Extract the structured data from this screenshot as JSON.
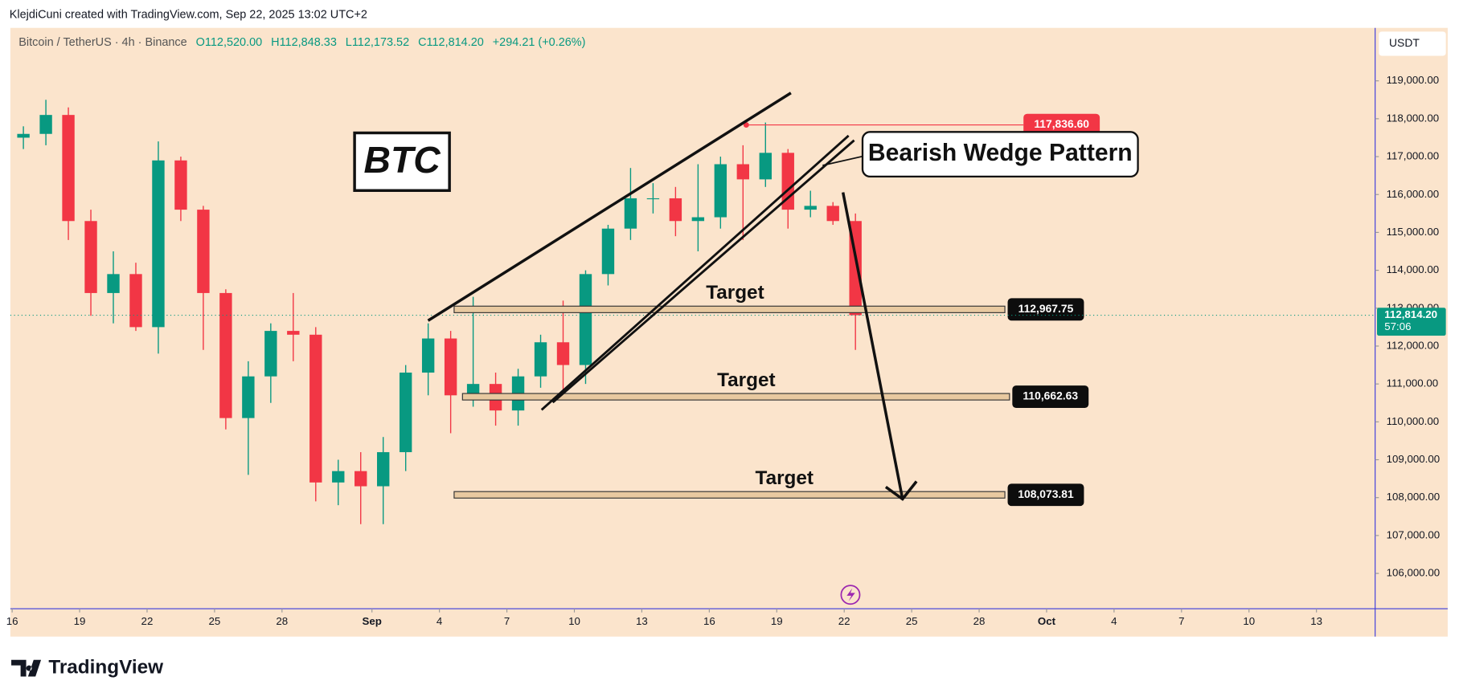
{
  "header": {
    "credit": "KlejdiCuni created with TradingView.com, Sep 22, 2025 13:02 UTC+2",
    "symbol": "Bitcoin / TetherUS · 4h · Binance",
    "open": "O112,520.00",
    "high": "H112,848.33",
    "low": "L112,173.52",
    "close": "C112,814.20",
    "change": "+294.21 (+0.26%)"
  },
  "chart_data": {
    "type": "candlestick",
    "currency": "USDT",
    "x": [
      0.5,
      1.5,
      2.5,
      3.5,
      4.5,
      5.5,
      6.5,
      7.5,
      8.5,
      9.5,
      10.5,
      11.5,
      12.5,
      13.5,
      14.5,
      15.5,
      16.5,
      17.5,
      18.5,
      19.5,
      20.5,
      21.5,
      22.5,
      23.5,
      24.5,
      25.5,
      26.5,
      27.5,
      28.5,
      29.5,
      30.5,
      31.5,
      32.5,
      33.5,
      34.5,
      35.5,
      36.5,
      37.5
    ],
    "open": [
      117500,
      117600,
      118100,
      115300,
      113400,
      113900,
      112500,
      116900,
      115600,
      113400,
      110100,
      111200,
      112400,
      112300,
      108400,
      108700,
      108300,
      109200,
      111300,
      112200,
      110700,
      111000,
      110300,
      111200,
      112100,
      111500,
      113900,
      115100,
      115900,
      115900,
      115300,
      115400,
      116800,
      116400,
      117100,
      115600,
      115700,
      115300
    ],
    "high": [
      117800,
      118500,
      118300,
      115600,
      114500,
      114200,
      117400,
      117000,
      115700,
      113500,
      111600,
      112600,
      113400,
      112500,
      109000,
      109200,
      109600,
      111500,
      112600,
      112400,
      113300,
      111300,
      111400,
      112300,
      113200,
      114000,
      115200,
      116700,
      116300,
      116200,
      116800,
      117000,
      117300,
      117900,
      117200,
      116100,
      115800,
      115500
    ],
    "low": [
      117200,
      117300,
      114800,
      112800,
      112600,
      112400,
      111800,
      115300,
      111900,
      109800,
      108600,
      110500,
      111600,
      107900,
      107800,
      107300,
      107300,
      108700,
      110700,
      109700,
      110400,
      109900,
      109900,
      110900,
      110700,
      111000,
      113600,
      114800,
      115500,
      114900,
      114500,
      115100,
      114800,
      116200,
      115100,
      115400,
      115200,
      111900
    ],
    "close": [
      117600,
      118100,
      115300,
      113400,
      113900,
      112500,
      116900,
      115600,
      113400,
      110100,
      111200,
      112400,
      112300,
      108400,
      108700,
      108300,
      109200,
      111300,
      112200,
      110700,
      111000,
      110300,
      111200,
      112100,
      111500,
      113900,
      115100,
      115900,
      115900,
      115300,
      115400,
      116800,
      116400,
      117100,
      115600,
      115700,
      115300,
      112814.2
    ],
    "up_color": "#089981",
    "down_color": "#f23645",
    "xlim": [
      -0.08,
      60.61
    ],
    "ylim": [
      105068,
      120398
    ],
    "xticks": [
      {
        "value": 0,
        "label": "16"
      },
      {
        "value": 3,
        "label": "19"
      },
      {
        "value": 6,
        "label": "22"
      },
      {
        "value": 9,
        "label": "25"
      },
      {
        "value": 12,
        "label": "28"
      },
      {
        "value": 16,
        "label": "Sep"
      },
      {
        "value": 19,
        "label": "4"
      },
      {
        "value": 22,
        "label": "7"
      },
      {
        "value": 25,
        "label": "10"
      },
      {
        "value": 28,
        "label": "13"
      },
      {
        "value": 31,
        "label": "16"
      },
      {
        "value": 34,
        "label": "19"
      },
      {
        "value": 37,
        "label": "22"
      },
      {
        "value": 40,
        "label": "25"
      },
      {
        "value": 43,
        "label": "28"
      },
      {
        "value": 46,
        "label": "Oct"
      },
      {
        "value": 49,
        "label": "4"
      },
      {
        "value": 52,
        "label": "7"
      },
      {
        "value": 55,
        "label": "10"
      },
      {
        "value": 58,
        "label": "13"
      }
    ],
    "yticks": [
      {
        "value": 106000,
        "label": "106,000.00"
      },
      {
        "value": 107000,
        "label": "107,000.00"
      },
      {
        "value": 108000,
        "label": "108,000.00"
      },
      {
        "value": 109000,
        "label": "109,000.00"
      },
      {
        "value": 110000,
        "label": "110,000.00"
      },
      {
        "value": 111000,
        "label": "111,000.00"
      },
      {
        "value": 112000,
        "label": "112,000.00"
      },
      {
        "value": 113000,
        "label": "113,000.00"
      },
      {
        "value": 114000,
        "label": "114,000.00"
      },
      {
        "value": 115000,
        "label": "115,000.00"
      },
      {
        "value": 116000,
        "label": "116,000.00"
      },
      {
        "value": 117000,
        "label": "117,000.00"
      },
      {
        "value": 118000,
        "label": "118,000.00"
      },
      {
        "value": 119000,
        "label": "119,000.00"
      }
    ],
    "high_marker": {
      "value": 117836.6,
      "label": "117,836.60"
    },
    "levels": [
      {
        "value": 112967.75,
        "label": "112,967.75",
        "text": "Target"
      },
      {
        "value": 110662.63,
        "label": "110,662.63",
        "text": "Target"
      },
      {
        "value": 108073.81,
        "label": "108,073.81",
        "text": "Target"
      }
    ],
    "last_price": {
      "value": 112814.2,
      "label": "112,814.20",
      "countdown": "57:06"
    },
    "ticker_label": "BTC",
    "pattern_label": "Bearish Wedge Pattern"
  },
  "footer": {
    "brand": "TradingView"
  }
}
